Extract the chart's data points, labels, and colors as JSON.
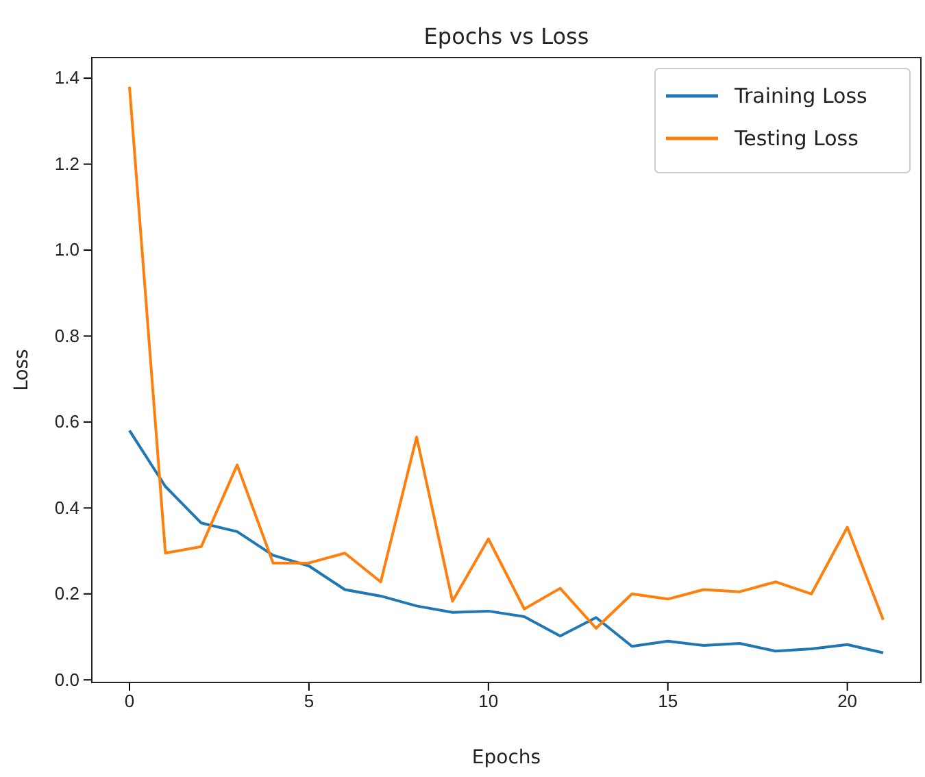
{
  "chart_data": {
    "type": "line",
    "title": "Epochs vs Loss",
    "xlabel": "Epochs",
    "ylabel": "Loss",
    "x": [
      0,
      1,
      2,
      3,
      4,
      5,
      6,
      7,
      8,
      9,
      10,
      11,
      12,
      13,
      14,
      15,
      16,
      17,
      18,
      19,
      20,
      21
    ],
    "series": [
      {
        "name": "Training Loss",
        "color": "#1f77b4",
        "values": [
          0.58,
          0.45,
          0.365,
          0.345,
          0.29,
          0.265,
          0.21,
          0.195,
          0.172,
          0.157,
          0.16,
          0.147,
          0.102,
          0.145,
          0.078,
          0.09,
          0.08,
          0.085,
          0.067,
          0.072,
          0.082,
          0.063
        ]
      },
      {
        "name": "Testing Loss",
        "color": "#ff7f0e",
        "values": [
          1.38,
          0.295,
          0.31,
          0.5,
          0.272,
          0.272,
          0.295,
          0.228,
          0.565,
          0.183,
          0.328,
          0.165,
          0.213,
          0.12,
          0.2,
          0.188,
          0.21,
          0.205,
          0.228,
          0.2,
          0.355,
          0.14
        ]
      }
    ],
    "xlim": [
      -1.05,
      22.05
    ],
    "xticks": [
      0,
      5,
      10,
      15,
      20
    ],
    "ylim": [
      -0.006,
      1.448
    ],
    "yticks": [
      {
        "value": 0,
        "label": "0.0"
      },
      {
        "value": 0.2,
        "label": "0.2"
      },
      {
        "value": 0.4,
        "label": "0.4"
      },
      {
        "value": 0.6,
        "label": "0.6"
      },
      {
        "value": 0.8,
        "label": "0.8"
      },
      {
        "value": 1.0,
        "label": "1.0"
      },
      {
        "value": 1.2,
        "label": "1.2"
      },
      {
        "value": 1.4,
        "label": "1.4"
      }
    ],
    "legend": "top right",
    "grid": false,
    "line_style": "solid",
    "marker": "none"
  }
}
